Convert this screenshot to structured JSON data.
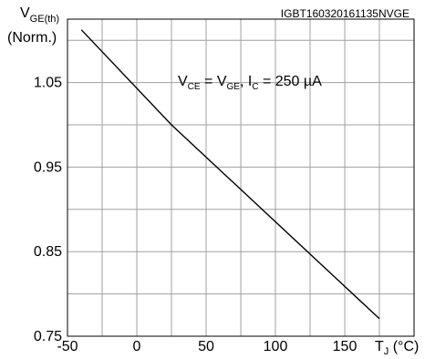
{
  "chart_data": {
    "type": "line",
    "watermark": "IGBT160320161135NVGE",
    "ylabel_main": "V",
    "ylabel_sub": "GE(th)",
    "ylabel_second_line": "(Norm.)",
    "xlabel_main": "T",
    "xlabel_sub": "J",
    "xlabel_unit": " (°C)",
    "annotation": {
      "v_ce": "V",
      "v_ce_sub": "CE",
      "equals": " = V",
      "v_ge_sub": "GE",
      "comma_i": ", I",
      "i_c_sub": "C",
      "value": " = 250 µA"
    },
    "xlim": [
      -50,
      200
    ],
    "ylim": [
      0.75,
      1.125
    ],
    "x_ticks": [
      -50,
      0,
      50,
      100,
      150
    ],
    "x_tick_labels": [
      "-50",
      "0",
      "50",
      "100",
      "150"
    ],
    "x_grid": [
      -50,
      -25,
      0,
      25,
      50,
      75,
      100,
      125,
      150,
      175,
      200
    ],
    "y_ticks": [
      0.75,
      0.85,
      0.95,
      1.05
    ],
    "y_tick_labels": [
      "0.75",
      "0.85",
      "0.95",
      "1.05"
    ],
    "y_grid": [
      0.75,
      0.8,
      0.85,
      0.9,
      0.95,
      1.0,
      1.05,
      1.1
    ],
    "series": [
      {
        "x": [
          -40,
          25,
          175
        ],
        "y": [
          1.1124,
          1.0,
          0.7707
        ]
      }
    ],
    "grid": true,
    "colors": {
      "line": "#000000",
      "grid": "#a0a0a0",
      "frame": "#000000"
    }
  }
}
